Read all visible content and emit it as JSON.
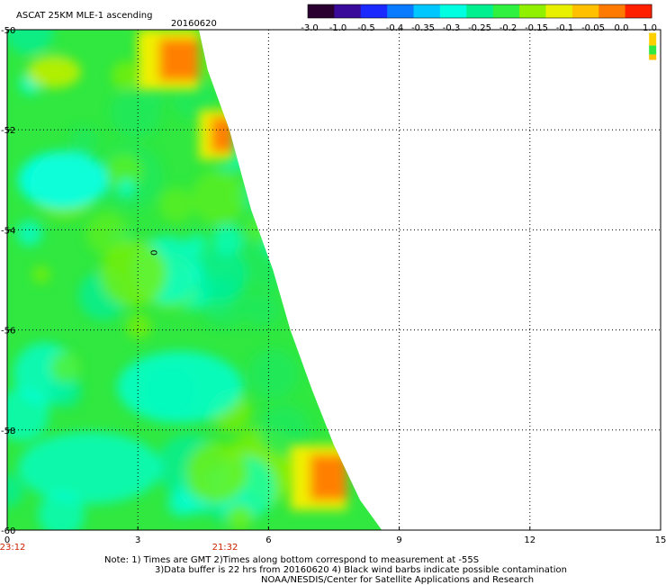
{
  "chart_data": {
    "type": "heatmap",
    "title": "ASCAT 25KM MLE-1 ascending",
    "date": "20160620",
    "colorbar": {
      "ticks": [
        "-3.0",
        "-1.0",
        "-0.5",
        "-0.4",
        "-0.35",
        "-0.3",
        "-0.25",
        "-0.2",
        "-0.15",
        "-0.1",
        "-0.05",
        "0.0",
        "1.0"
      ],
      "colors": [
        "#2a0030",
        "#3a0a9a",
        "#1a2aff",
        "#0a7aff",
        "#00c8ff",
        "#00ffe0",
        "#00f090",
        "#30f040",
        "#90f000",
        "#e8f000",
        "#ffc000",
        "#ff7a00",
        "#ff2000"
      ]
    },
    "x_ticks": [
      "0",
      "3",
      "6",
      "9",
      "12",
      "15"
    ],
    "y_ticks": [
      "-50",
      "-52",
      "-54",
      "-56",
      "-58",
      "-60"
    ],
    "xlim": [
      0,
      15
    ],
    "ylim": [
      -60,
      -50
    ],
    "time_labels": [
      {
        "x": 0,
        "label": "23:12"
      },
      {
        "x": 5,
        "label": "21:32"
      }
    ],
    "contour_label": "0",
    "swath_edge": [
      [
        4.4,
        -50
      ],
      [
        4.6,
        -50.8
      ],
      [
        5.1,
        -52.0
      ],
      [
        5.6,
        -53.6
      ],
      [
        6.1,
        -54.8
      ],
      [
        6.5,
        -56.0
      ],
      [
        7.0,
        -57.2
      ],
      [
        7.5,
        -58.3
      ],
      [
        8.1,
        -59.4
      ],
      [
        8.6,
        -60
      ]
    ],
    "hot_regions": [
      {
        "x0": 3.0,
        "x1": 4.4,
        "y0": -50.0,
        "y1": -51.2,
        "level": "0.0"
      },
      {
        "x0": 4.4,
        "x1": 5.2,
        "y0": -51.6,
        "y1": -52.6,
        "level": "0.0"
      },
      {
        "x0": 6.5,
        "x1": 7.8,
        "y0": -58.3,
        "y1": -59.6,
        "level": "0.0"
      }
    ],
    "corner_patch": {
      "x": 14.9,
      "y": -50.1
    }
  },
  "notes": {
    "line1": "Note: 1) Times are GMT 2)Times along bottom correspond to measurement at -55S",
    "line2": "3)Data buffer is 22 hrs from 20160620 4) Black wind barbs indicate possible contamination",
    "line3": "NOAA/NESDIS/Center for Satellite Applications and Research"
  }
}
